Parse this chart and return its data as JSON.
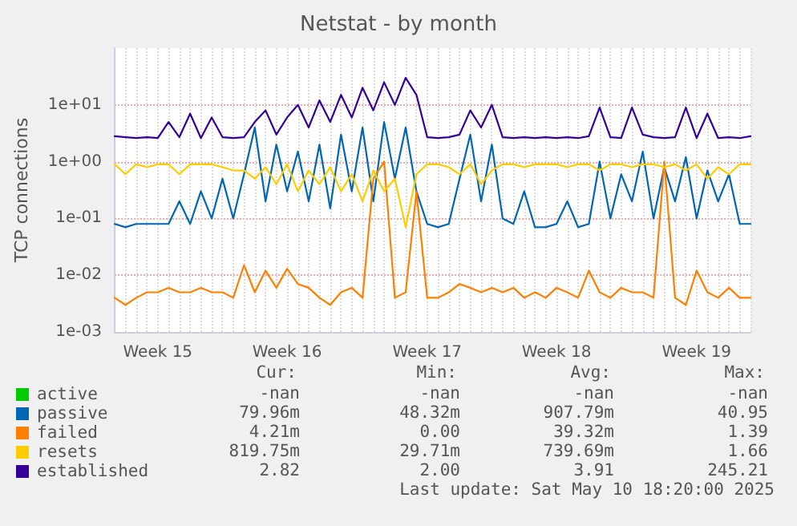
{
  "chart_data": {
    "type": "line",
    "title": "Netstat - by month",
    "ylabel": "TCP connections",
    "categories": [
      null,
      null,
      null,
      null,
      "Week 15",
      null,
      null,
      null,
      null,
      null,
      null,
      null,
      null,
      null,
      null,
      null,
      "Week 16",
      null,
      null,
      null,
      null,
      null,
      null,
      null,
      null,
      null,
      null,
      null,
      null,
      "Week 17",
      null,
      null,
      null,
      null,
      null,
      null,
      null,
      null,
      null,
      null,
      null,
      "Week 18",
      null,
      null,
      null,
      null,
      null,
      null,
      null,
      null,
      null,
      null,
      null,
      null,
      "Week 19",
      null,
      null,
      null,
      null,
      null
    ],
    "series": [
      {
        "name": "active",
        "color": "#00cc00",
        "values": [
          null,
          null,
          null,
          null,
          null,
          null,
          null,
          null,
          null,
          null,
          null,
          null,
          null,
          null,
          null,
          null,
          null,
          null,
          null,
          null,
          null,
          null,
          null,
          null,
          null,
          null,
          null,
          null,
          null,
          null,
          null,
          null,
          null,
          null,
          null,
          null,
          null,
          null,
          null,
          null,
          null,
          null,
          null,
          null,
          null,
          null,
          null,
          null,
          null,
          null,
          null,
          null,
          null,
          null,
          null,
          null,
          null,
          null,
          null,
          null
        ]
      },
      {
        "name": "passive",
        "color": "#0066b3",
        "values": [
          0.08,
          0.07,
          0.08,
          0.08,
          0.08,
          0.08,
          0.2,
          0.08,
          0.3,
          0.1,
          0.5,
          0.1,
          0.6,
          4,
          0.2,
          2,
          0.3,
          1.5,
          0.2,
          2,
          0.15,
          3,
          0.3,
          4,
          0.2,
          5,
          0.5,
          4,
          0.3,
          0.08,
          0.07,
          0.08,
          0.5,
          3,
          0.2,
          2,
          0.1,
          0.08,
          0.3,
          0.07,
          0.07,
          0.08,
          0.2,
          0.07,
          0.08,
          1,
          0.1,
          0.6,
          0.2,
          1.5,
          0.1,
          0.8,
          0.2,
          1.2,
          0.1,
          0.7,
          0.2,
          0.6,
          0.08,
          0.08
        ]
      },
      {
        "name": "failed",
        "color": "#ff8000",
        "values": [
          0.004,
          0.003,
          0.004,
          0.005,
          0.005,
          0.006,
          0.005,
          0.005,
          0.006,
          0.005,
          0.005,
          0.004,
          0.015,
          0.005,
          0.012,
          0.006,
          0.013,
          0.007,
          0.006,
          0.004,
          0.003,
          0.005,
          0.006,
          0.004,
          0.5,
          1,
          0.004,
          0.005,
          0.3,
          0.004,
          0.004,
          0.005,
          0.007,
          0.006,
          0.005,
          0.006,
          0.005,
          0.006,
          0.004,
          0.005,
          0.004,
          0.006,
          0.005,
          0.004,
          0.012,
          0.005,
          0.004,
          0.006,
          0.005,
          0.005,
          0.004,
          1,
          0.004,
          0.003,
          0.012,
          0.005,
          0.004,
          0.006,
          0.004,
          0.004
        ]
      },
      {
        "name": "resets",
        "color": "#ffcc00",
        "values": [
          0.9,
          0.6,
          0.9,
          0.8,
          0.9,
          0.9,
          0.6,
          0.9,
          0.9,
          0.9,
          0.8,
          0.7,
          0.7,
          0.5,
          0.8,
          0.4,
          0.9,
          0.3,
          0.7,
          0.4,
          0.8,
          0.3,
          0.6,
          0.2,
          0.7,
          0.3,
          0.5,
          0.07,
          0.6,
          0.9,
          0.9,
          0.8,
          0.6,
          0.9,
          0.4,
          0.7,
          0.9,
          0.9,
          0.8,
          0.9,
          0.9,
          0.9,
          0.8,
          0.9,
          0.9,
          0.7,
          0.9,
          0.9,
          0.8,
          0.9,
          0.9,
          0.8,
          0.9,
          0.7,
          0.9,
          0.5,
          0.8,
          0.6,
          0.9,
          0.9
        ]
      },
      {
        "name": "established",
        "color": "#330099",
        "values": [
          2.8,
          2.7,
          2.6,
          2.7,
          2.6,
          5,
          2.7,
          7,
          2.6,
          6,
          2.7,
          2.6,
          2.7,
          5,
          8,
          3,
          6,
          10,
          4,
          12,
          5,
          15,
          6,
          20,
          8,
          25,
          10,
          30,
          15,
          2.7,
          2.6,
          2.7,
          3,
          8,
          4,
          10,
          2.7,
          2.6,
          2.7,
          2.6,
          2.7,
          2.6,
          2.7,
          2.6,
          2.8,
          9,
          2.7,
          2.6,
          9,
          3,
          2.7,
          2.6,
          2.7,
          9,
          2.6,
          7,
          2.6,
          2.7,
          2.6,
          2.8
        ]
      }
    ],
    "log": "y",
    "ylim": [
      0.001,
      100
    ],
    "yticks": [
      {
        "value": 0.001,
        "label": "1e-03"
      },
      {
        "value": 0.01,
        "label": "1e-02"
      },
      {
        "value": 0.1,
        "label": "1e-01"
      },
      {
        "value": 1,
        "label": "1e+00"
      },
      {
        "value": 10,
        "label": "1e+01"
      }
    ],
    "grid": true,
    "legend": "bottom left",
    "marker": "none",
    "line_style": "solid",
    "annotations": [
      "Cur:",
      "Min:",
      "Avg:",
      "Max:",
      "-nan",
      "-nan",
      "-nan",
      "-nan",
      "79.96m",
      "48.32m",
      "907.79m",
      "40.95",
      "4.21m",
      "0.00",
      "39.32m",
      "1.39",
      "819.75m",
      "29.71m",
      "739.69m",
      "1.66",
      "2.82",
      "2.00",
      "3.91",
      "245.21",
      "Last update: Sat May 10 18:20:00 2025"
    ]
  }
}
